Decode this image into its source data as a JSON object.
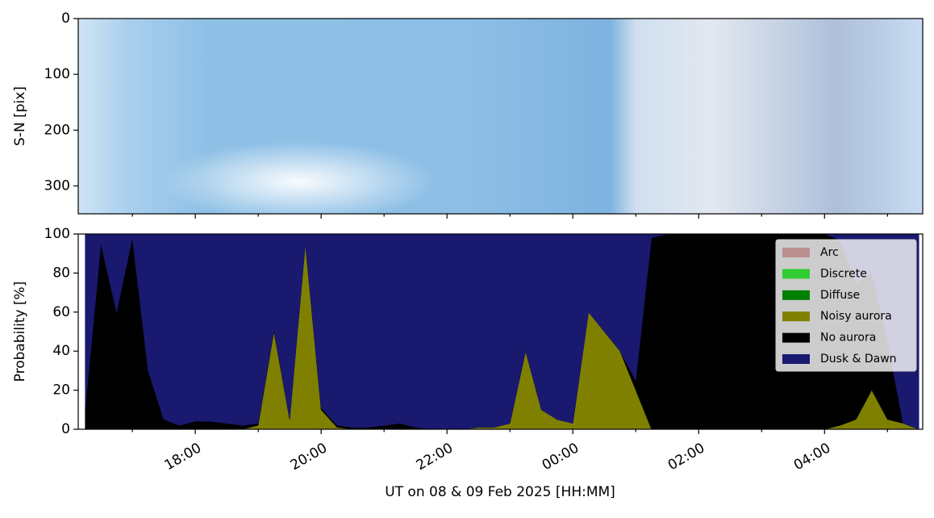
{
  "chart_data": [
    {
      "type": "image",
      "ylabel": "S-N [pix]",
      "ylim": [
        350,
        0
      ],
      "yticks": [
        0,
        100,
        200,
        300
      ],
      "xlim": [
        16.14,
        29.56
      ],
      "xticks": [
        18,
        20,
        22,
        24,
        26,
        28
      ],
      "xminorticks": [
        17,
        19,
        21,
        23,
        25,
        27,
        29
      ]
    },
    {
      "type": "stackedarea",
      "ylabel": "Probability [%]",
      "xlabel": "UT on 08 & 09 Feb 2025 [HH:MM]",
      "xlim": [
        16.14,
        29.56
      ],
      "xticks": [
        {
          "value": 18,
          "label": "18:00"
        },
        {
          "value": 20,
          "label": "20:00"
        },
        {
          "value": 22,
          "label": "22:00"
        },
        {
          "value": 24,
          "label": "00:00"
        },
        {
          "value": 26,
          "label": "02:00"
        },
        {
          "value": 28,
          "label": "04:00"
        }
      ],
      "xminorticks": [
        17,
        19,
        21,
        23,
        25,
        27,
        29
      ],
      "ylim": [
        0,
        100
      ],
      "yticks": [
        0,
        20,
        40,
        60,
        80,
        100
      ],
      "legend": "upper right",
      "x": [
        16.25,
        16.5,
        16.75,
        17,
        17.25,
        17.5,
        17.75,
        18,
        18.25,
        18.5,
        18.75,
        19,
        19.25,
        19.5,
        19.75,
        20,
        20.25,
        20.5,
        20.75,
        21,
        21.25,
        21.5,
        21.75,
        22,
        22.25,
        22.5,
        22.75,
        23,
        23.25,
        23.5,
        23.75,
        24,
        24.25,
        24.5,
        24.75,
        25,
        25.25,
        25.5,
        25.75,
        26,
        26.25,
        26.5,
        26.75,
        27,
        27.25,
        27.5,
        27.75,
        28,
        28.25,
        28.5,
        28.75,
        29,
        29.25,
        29.5
      ],
      "series": [
        {
          "name": "Arc",
          "color": "#bc8f8f",
          "values": [
            0,
            0,
            0,
            0,
            0,
            0,
            0,
            0,
            0,
            0,
            0,
            0,
            0,
            0,
            0,
            0,
            0,
            0,
            0,
            0,
            0,
            0,
            0,
            0,
            0,
            0,
            0,
            0,
            0,
            0,
            0,
            0,
            0,
            0,
            0,
            0,
            0,
            0,
            0,
            0,
            0,
            0,
            0,
            0,
            0,
            0,
            0,
            0,
            0,
            0,
            0,
            0,
            0,
            0
          ]
        },
        {
          "name": "Discrete",
          "color": "#32cd32",
          "values": [
            0,
            0,
            0,
            0,
            0,
            0,
            0,
            0,
            0,
            0,
            0,
            0,
            0,
            0,
            0,
            0,
            0,
            0,
            0,
            0,
            0,
            0,
            0,
            0,
            0,
            0,
            0,
            0,
            0,
            0,
            0,
            0,
            0,
            0,
            0,
            0,
            0,
            0,
            0,
            0,
            0,
            0,
            0,
            0,
            0,
            0,
            0,
            0,
            0,
            0,
            0,
            0,
            0,
            0
          ]
        },
        {
          "name": "Diffuse",
          "color": "#008000",
          "values": [
            0,
            0,
            0,
            0,
            0,
            0,
            0,
            0,
            0,
            0,
            0,
            0,
            0,
            0,
            0,
            0,
            0,
            0,
            0,
            0,
            0,
            0,
            0,
            0,
            0,
            0,
            0,
            0,
            0,
            0,
            0,
            0,
            0,
            0,
            0,
            0,
            0,
            0,
            0,
            0,
            0,
            0,
            0,
            0,
            0,
            0,
            0,
            0,
            0,
            0,
            0,
            0,
            0,
            0
          ]
        },
        {
          "name": "Noisy aurora",
          "color": "#808000",
          "values": [
            0,
            0,
            0,
            0,
            0,
            0,
            0,
            0,
            0,
            0,
            0,
            2,
            50,
            5,
            95,
            10,
            1,
            0,
            0,
            0,
            0,
            0,
            0,
            0,
            0,
            1,
            1,
            3,
            40,
            10,
            5,
            3,
            60,
            50,
            40,
            20,
            0,
            0,
            0,
            0,
            0,
            0,
            0,
            0,
            0,
            0,
            0,
            0,
            2,
            5,
            20,
            5,
            3,
            0
          ]
        },
        {
          "name": "No aurora",
          "color": "#000000",
          "values": [
            10,
            95,
            60,
            98,
            30,
            5,
            2,
            4,
            4,
            3,
            2,
            1,
            1,
            0,
            0,
            1,
            1,
            1,
            1,
            2,
            3,
            1,
            0,
            0,
            0,
            0,
            0,
            0,
            0,
            0,
            0,
            0,
            0,
            0,
            0,
            5,
            98,
            100,
            100,
            100,
            100,
            100,
            100,
            100,
            100,
            100,
            100,
            100,
            95,
            70,
            60,
            40,
            0,
            0
          ]
        },
        {
          "name": "Dusk & Dawn",
          "color": "#191970",
          "values": [
            90,
            5,
            40,
            2,
            70,
            95,
            98,
            96,
            96,
            97,
            98,
            97,
            49,
            95,
            5,
            89,
            98,
            99,
            99,
            98,
            97,
            99,
            100,
            100,
            100,
            99,
            99,
            97,
            60,
            90,
            95,
            97,
            40,
            50,
            60,
            75,
            2,
            0,
            0,
            0,
            0,
            0,
            0,
            0,
            0,
            0,
            0,
            0,
            3,
            25,
            20,
            55,
            97,
            100
          ]
        }
      ]
    }
  ]
}
